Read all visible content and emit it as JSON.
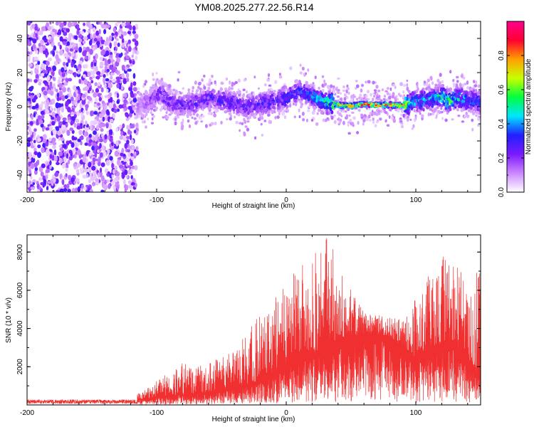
{
  "title": "YM08.2025.277.22.56.R14",
  "chart_data": [
    {
      "type": "heatmap",
      "name": "spectrogram",
      "xlabel": "Height of straight line (km)",
      "ylabel": "Frequency (Hz)",
      "xlim": [
        -200,
        150
      ],
      "ylim": [
        -50,
        50
      ],
      "xticks": [
        -200,
        -100,
        0,
        100
      ],
      "xtick_labels": [
        "-200",
        "-100",
        "0",
        "100"
      ],
      "yticks": [
        -40,
        -20,
        0,
        20,
        40
      ],
      "ytick_labels": [
        "-40",
        "-20",
        "0",
        "20",
        "40"
      ],
      "colorbar": {
        "label": "Normalized spectral amplitude",
        "range": [
          0,
          1
        ],
        "ticks": [
          0.0,
          0.2,
          0.4,
          0.6,
          0.8
        ],
        "tick_labels": [
          "0.0",
          "0.2",
          "0.4",
          "0.6",
          "0.8"
        ],
        "colormap": [
          "#ffffff",
          "#cc88ff",
          "#7a1aff",
          "#2020ff",
          "#00e5ff",
          "#00ff40",
          "#c8ff00",
          "#ffa000",
          "#ff0030",
          "#ff0090"
        ]
      },
      "noise_region_x": [
        -200,
        -115
      ],
      "ridge": {
        "x": [
          -115,
          -105,
          -97,
          -90,
          -80,
          -70,
          -60,
          -50,
          -40,
          -30,
          -20,
          -10,
          0,
          10,
          20,
          30,
          40,
          50,
          60,
          70,
          80,
          90,
          95,
          100,
          110,
          120,
          125,
          130,
          140,
          150
        ],
        "y": [
          0,
          3,
          8,
          3,
          1,
          2,
          5,
          4,
          2,
          0,
          2,
          3,
          5,
          9,
          6,
          3,
          1,
          0.5,
          1.5,
          1,
          1,
          0.5,
          2,
          3,
          4,
          6,
          3,
          5,
          4,
          3
        ],
        "amplitude": [
          0.15,
          0.25,
          0.3,
          0.28,
          0.28,
          0.3,
          0.3,
          0.32,
          0.3,
          0.3,
          0.32,
          0.35,
          0.35,
          0.38,
          0.4,
          0.55,
          0.9,
          0.95,
          0.9,
          0.95,
          0.9,
          0.85,
          0.5,
          0.45,
          0.45,
          0.55,
          0.7,
          0.5,
          0.45,
          0.4
        ]
      }
    },
    {
      "type": "line",
      "name": "snr",
      "xlabel": "Height of straight line (km)",
      "ylabel": "SNR (10 * v/v)",
      "xlim": [
        -200,
        150
      ],
      "ylim": [
        0,
        8900
      ],
      "color": "#f03030",
      "xticks": [
        -200,
        -100,
        0,
        100
      ],
      "xtick_labels": [
        "-200",
        "-100",
        "0",
        "100"
      ],
      "yticks": [
        2000,
        4000,
        6000,
        8000
      ],
      "ytick_labels": [
        "2000",
        "4000",
        "6000",
        "8000"
      ],
      "envelope": {
        "x": [
          -200,
          -150,
          -120,
          -112,
          -105,
          -100,
          -90,
          -80,
          -70,
          -60,
          -50,
          -40,
          -30,
          -20,
          -10,
          0,
          10,
          20,
          30,
          40,
          50,
          60,
          70,
          80,
          90,
          100,
          110,
          120,
          130,
          140,
          150
        ],
        "base": [
          250,
          250,
          250,
          300,
          350,
          450,
          500,
          550,
          600,
          650,
          750,
          900,
          1050,
          1300,
          1600,
          2000,
          2300,
          2600,
          2800,
          3200,
          3600,
          3700,
          3700,
          3600,
          3000,
          2500,
          2800,
          3200,
          3200,
          2400,
          1400
        ],
        "peak": [
          400,
          400,
          450,
          700,
          1000,
          1300,
          1700,
          2200,
          2000,
          2200,
          2500,
          3000,
          3800,
          4800,
          5600,
          6300,
          7300,
          8300,
          8900,
          7700,
          6000,
          5000,
          4700,
          4600,
          4700,
          5600,
          6800,
          7800,
          7600,
          6900,
          7300
        ]
      }
    }
  ]
}
